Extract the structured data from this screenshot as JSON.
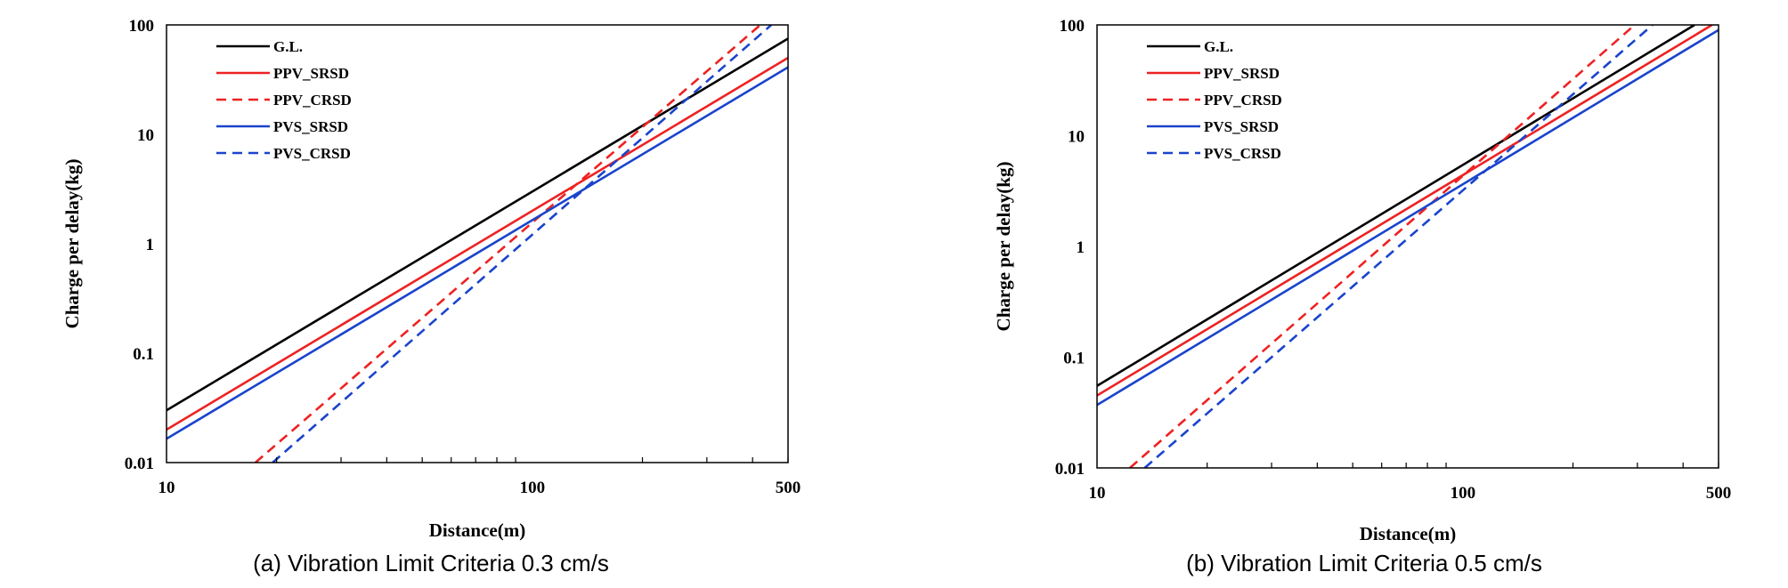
{
  "chart_data": [
    {
      "type": "line",
      "scale": "log-log",
      "caption": "(a) Vibration Limit Criteria 0.3 cm/s",
      "xlabel": "Distance(m)",
      "ylabel": "Charge per delay(kg)",
      "xlim": [
        10,
        500
      ],
      "ylim": [
        0.01,
        100
      ],
      "x_ticks": [
        10,
        100,
        500
      ],
      "x_tick_labels": [
        "10",
        "100",
        "500"
      ],
      "y_ticks": [
        0.01,
        0.1,
        1,
        10,
        100
      ],
      "y_tick_labels": [
        "0.01",
        "0.1",
        "1",
        "10",
        "100"
      ],
      "legend_position": "top-left",
      "series": [
        {
          "name": "G.L.",
          "color": "#000000",
          "dash": "solid",
          "x": [
            10,
            500
          ],
          "y": [
            0.03,
            75
          ]
        },
        {
          "name": "PPV_SRSD",
          "color": "#ee2222",
          "dash": "solid",
          "x": [
            10,
            500
          ],
          "y": [
            0.02,
            50
          ]
        },
        {
          "name": "PPV_CRSD",
          "color": "#ee2222",
          "dash": "dashed",
          "x": [
            17.5,
            420
          ],
          "y": [
            0.01,
            100
          ]
        },
        {
          "name": "PVS_SRSD",
          "color": "#1a44cc",
          "dash": "solid",
          "x": [
            10,
            500
          ],
          "y": [
            0.0165,
            41
          ]
        },
        {
          "name": "PVS_CRSD",
          "color": "#1a44cc",
          "dash": "dashed",
          "x": [
            19.5,
            450
          ],
          "y": [
            0.01,
            100
          ]
        }
      ]
    },
    {
      "type": "line",
      "scale": "log-log",
      "caption": "(b) Vibration Limit Criteria 0.5 cm/s",
      "xlabel": "Distance(m)",
      "ylabel": "Charge per delay(kg)",
      "xlim": [
        10,
        500
      ],
      "ylim": [
        0.01,
        100
      ],
      "x_ticks": [
        10,
        100,
        500
      ],
      "x_tick_labels": [
        "10",
        "100",
        "500"
      ],
      "y_ticks": [
        0.01,
        0.1,
        1,
        10,
        100
      ],
      "y_tick_labels": [
        "0.01",
        "0.1",
        "1",
        "10",
        "100"
      ],
      "legend_position": "top-left",
      "series": [
        {
          "name": "G.L.",
          "color": "#000000",
          "dash": "solid",
          "x": [
            10,
            430
          ],
          "y": [
            0.055,
            100
          ]
        },
        {
          "name": "PPV_SRSD",
          "color": "#ee2222",
          "dash": "solid",
          "x": [
            10,
            480
          ],
          "y": [
            0.045,
            100
          ]
        },
        {
          "name": "PPV_CRSD",
          "color": "#ee2222",
          "dash": "dashed",
          "x": [
            12.3,
            295
          ],
          "y": [
            0.01,
            100
          ]
        },
        {
          "name": "PVS_SRSD",
          "color": "#1a44cc",
          "dash": "solid",
          "x": [
            10,
            500
          ],
          "y": [
            0.037,
            90
          ]
        },
        {
          "name": "PVS_CRSD",
          "color": "#1a44cc",
          "dash": "dashed",
          "x": [
            13.5,
            330
          ],
          "y": [
            0.01,
            100
          ]
        }
      ]
    }
  ]
}
